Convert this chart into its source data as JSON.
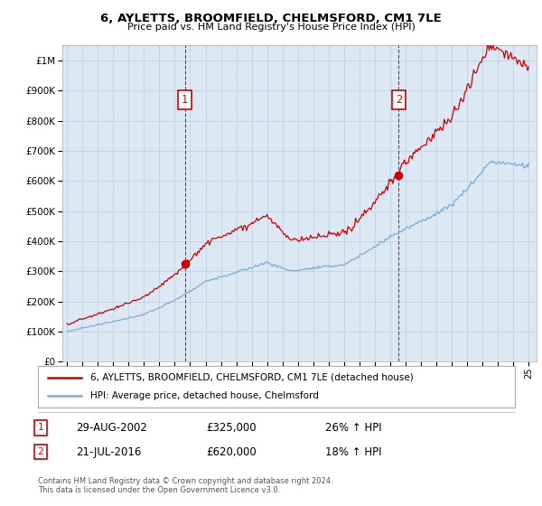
{
  "title": "6, AYLETTS, BROOMFIELD, CHELMSFORD, CM1 7LE",
  "subtitle": "Price paid vs. HM Land Registry's House Price Index (HPI)",
  "ytick_values": [
    0,
    100000,
    200000,
    300000,
    400000,
    500000,
    600000,
    700000,
    800000,
    900000,
    1000000
  ],
  "ylim": [
    0,
    1050000
  ],
  "xlim_start": 1994.7,
  "xlim_end": 2025.5,
  "xticks": [
    1995,
    1996,
    1997,
    1998,
    1999,
    2000,
    2001,
    2002,
    2003,
    2004,
    2005,
    2006,
    2007,
    2008,
    2009,
    2010,
    2011,
    2012,
    2013,
    2014,
    2015,
    2016,
    2017,
    2018,
    2019,
    2020,
    2021,
    2022,
    2023,
    2024,
    2025
  ],
  "sale1_x": 2002.66,
  "sale1_y": 325000,
  "sale2_x": 2016.54,
  "sale2_y": 620000,
  "line1_color": "#cc0000",
  "line2_color": "#7aaddc",
  "vline_color": "#cc0000",
  "marker_color": "#cc0000",
  "sale_box_color": "#cc0000",
  "chart_bg_color": "#dce9f5",
  "legend1_label": "6, AYLETTS, BROOMFIELD, CHELMSFORD, CM1 7LE (detached house)",
  "legend2_label": "HPI: Average price, detached house, Chelmsford",
  "sale1_date": "29-AUG-2002",
  "sale1_price": "£325,000",
  "sale1_hpi": "26% ↑ HPI",
  "sale2_date": "21-JUL-2016",
  "sale2_price": "£620,000",
  "sale2_hpi": "18% ↑ HPI",
  "footnote": "Contains HM Land Registry data © Crown copyright and database right 2024.\nThis data is licensed under the Open Government Licence v3.0.",
  "background_color": "#ffffff",
  "grid_color": "#b8cfe0"
}
